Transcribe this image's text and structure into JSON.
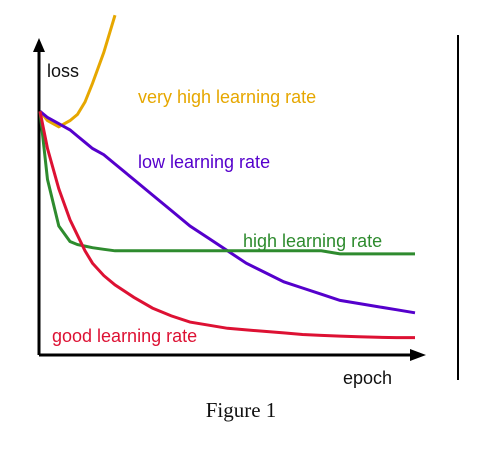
{
  "chart_data": {
    "type": "line",
    "title": "",
    "xlabel": "epoch",
    "ylabel": "loss",
    "grid": false,
    "axis_ticks": false,
    "x": [
      0,
      0.02,
      0.05,
      0.08,
      0.1,
      0.12,
      0.14,
      0.17,
      0.2,
      0.25,
      0.3,
      0.35,
      0.4,
      0.45,
      0.5,
      0.55,
      0.6,
      0.65,
      0.7,
      0.75,
      0.8,
      0.85,
      0.9,
      0.95,
      1.0
    ],
    "xlim": [
      0,
      1
    ],
    "ylim": [
      0,
      1
    ],
    "series": [
      {
        "name": "very high learning rate",
        "color": "#e6a700",
        "values": [
          0.77,
          0.74,
          0.72,
          0.74,
          0.76,
          0.8,
          0.86,
          0.96,
          1.08,
          null,
          null,
          null,
          null,
          null,
          null,
          null,
          null,
          null,
          null,
          null,
          null,
          null,
          null,
          null,
          null
        ],
        "label_position": "top-center"
      },
      {
        "name": "low learning rate",
        "color": "#5500cc",
        "values": [
          0.77,
          0.75,
          0.73,
          0.71,
          0.69,
          0.67,
          0.65,
          0.63,
          0.6,
          0.55,
          0.5,
          0.45,
          0.4,
          0.36,
          0.32,
          0.28,
          0.25,
          0.22,
          0.2,
          0.18,
          0.16,
          0.15,
          0.14,
          0.13,
          0.12
        ],
        "label_position": "upper-middle"
      },
      {
        "name": "high learning rate",
        "color": "#2e8b2e",
        "values": [
          0.77,
          0.55,
          0.4,
          0.35,
          0.34,
          0.335,
          0.33,
          0.325,
          0.32,
          0.32,
          0.32,
          0.32,
          0.32,
          0.32,
          0.32,
          0.32,
          0.32,
          0.32,
          0.32,
          0.32,
          0.31,
          0.31,
          0.31,
          0.31,
          0.31
        ],
        "label_position": "middle-right"
      },
      {
        "name": "good learning rate",
        "color": "#dd1133",
        "values": [
          0.77,
          0.65,
          0.52,
          0.42,
          0.37,
          0.32,
          0.28,
          0.24,
          0.21,
          0.17,
          0.135,
          0.11,
          0.09,
          0.08,
          0.07,
          0.065,
          0.06,
          0.055,
          0.05,
          0.047,
          0.045,
          0.043,
          0.041,
          0.04,
          0.04
        ],
        "label_position": "bottom-left"
      }
    ]
  },
  "figure": {
    "caption": "Figure 1"
  }
}
